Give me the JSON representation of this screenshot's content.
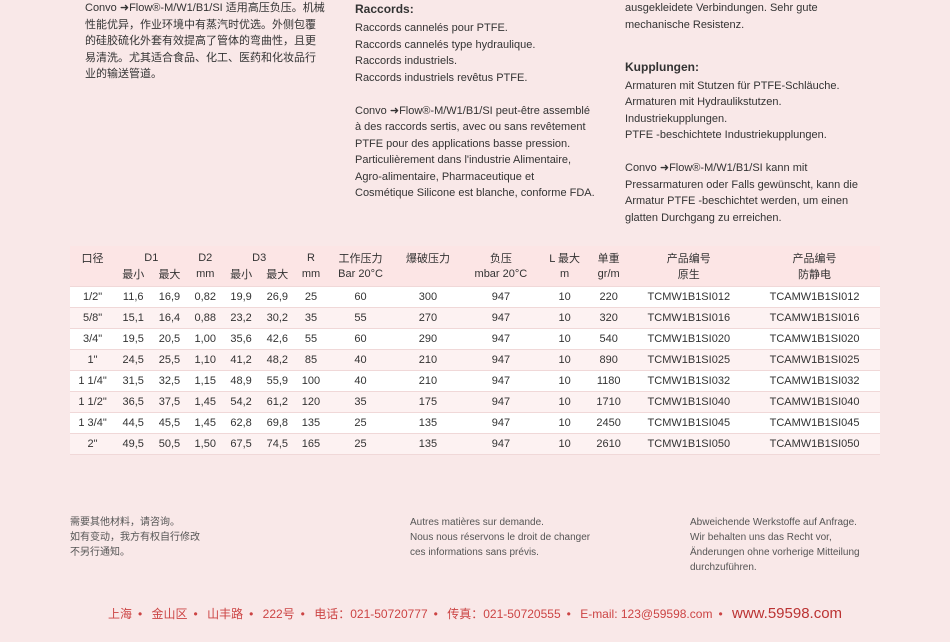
{
  "cols": [
    {
      "paras": [
        "Convo ➜Flow®-M/W1/B1/SI 适用高压负压。机械性能优异，作业环境中有蒸汽时优选。外侧包覆的硅胶硫化外套有效提高了管体的弯曲性，且更易清洗。尤其适合食品、化工、医药和化妆品行业的输送管道。"
      ]
    },
    {
      "heading": "Raccords:",
      "paras": [
        "Raccords cannelés pour PTFE.",
        "Raccords cannelés type hydraulique.",
        "Raccords industriels.",
        "Raccords industriels revêtus PTFE.",
        "",
        "Convo ➜Flow®-M/W1/B1/SI peut-être assemblé à des raccords sertis, avec ou sans revêtement PTFE pour des applications basse pression.",
        "Particulièrement dans l'industrie Alimentaire, Agro-alimentaire, Pharmaceutique et Cosmétique Silicone est blanche, conforme FDA."
      ]
    },
    {
      "paras": [
        "ausgekleidete Verbindungen. Sehr gute mechanische Resistenz.",
        ""
      ],
      "heading2": "Kupplungen:",
      "paras2": [
        "Armaturen mit Stutzen für PTFE-Schläuche.",
        "Armaturen mit Hydraulikstutzen.",
        "Industriekupplungen.",
        "PTFE -beschichtete Industriekupplungen.",
        "",
        "Convo ➜Flow®-M/W1/B1/SI kann mit Pressarmaturen oder Falls gewünscht, kann die Armatur PTFE -beschichtet werden, um einen glatten Durchgang zu erreichen."
      ]
    }
  ],
  "headers1": [
    "口径",
    "D1",
    "",
    "D2",
    "D3",
    "",
    "R",
    "工作压力",
    "爆破压力",
    "负压",
    "L 最大",
    "单重",
    "产品编号",
    "产品编号"
  ],
  "headers2": [
    "",
    "最小",
    "最大",
    "mm",
    "最小",
    "最大",
    "mm",
    "Bar 20°C",
    "",
    "mbar 20°C",
    "m",
    "gr/m",
    "原生",
    "防静电"
  ],
  "spans1": [
    1,
    2,
    0,
    1,
    2,
    0,
    1,
    1,
    1,
    1,
    1,
    1,
    1,
    1
  ],
  "rows": [
    [
      "1/2\"",
      "11,6",
      "16,9",
      "0,82",
      "19,9",
      "26,9",
      "25",
      "60",
      "300",
      "947",
      "10",
      "220",
      "TCMW1B1SI012",
      "TCAMW1B1SI012"
    ],
    [
      "5/8\"",
      "15,1",
      "16,4",
      "0,88",
      "23,2",
      "30,2",
      "35",
      "55",
      "270",
      "947",
      "10",
      "320",
      "TCMW1B1SI016",
      "TCAMW1B1SI016"
    ],
    [
      "3/4\"",
      "19,5",
      "20,5",
      "1,00",
      "35,6",
      "42,6",
      "55",
      "60",
      "290",
      "947",
      "10",
      "540",
      "TCMW1B1SI020",
      "TCAMW1B1SI020"
    ],
    [
      "1\"",
      "24,5",
      "25,5",
      "1,10",
      "41,2",
      "48,2",
      "85",
      "40",
      "210",
      "947",
      "10",
      "890",
      "TCMW1B1SI025",
      "TCAMW1B1SI025"
    ],
    [
      "1 1/4\"",
      "31,5",
      "32,5",
      "1,15",
      "48,9",
      "55,9",
      "100",
      "40",
      "210",
      "947",
      "10",
      "1180",
      "TCMW1B1SI032",
      "TCAMW1B1SI032"
    ],
    [
      "1 1/2\"",
      "36,5",
      "37,5",
      "1,45",
      "54,2",
      "61,2",
      "120",
      "35",
      "175",
      "947",
      "10",
      "1710",
      "TCMW1B1SI040",
      "TCAMW1B1SI040"
    ],
    [
      "1 3/4\"",
      "44,5",
      "45,5",
      "1,45",
      "62,8",
      "69,8",
      "135",
      "25",
      "135",
      "947",
      "10",
      "2450",
      "TCMW1B1SI045",
      "TCAMW1B1SI045"
    ],
    [
      "2\"",
      "49,5",
      "50,5",
      "1,50",
      "67,5",
      "74,5",
      "165",
      "25",
      "135",
      "947",
      "10",
      "2610",
      "TCMW1B1SI050",
      "TCAMW1B1SI050"
    ]
  ],
  "fcols": [
    [
      "需要其他材料，请咨询。",
      "如有变动，我方有权自行修改",
      "不另行通知。"
    ],
    [
      "Autres matières sur demande.",
      "Nous nous réservons le droit de changer",
      "ces informations sans prévis."
    ],
    [
      "Abweichende Werkstoffe auf Anfrage.",
      "Wir behalten uns das Recht vor,",
      "Änderungen  ohne vorherige  Mitteilung durchzuführen."
    ]
  ],
  "contact": {
    "loc": [
      "上海",
      "金山区",
      "山丰路",
      "222号"
    ],
    "tel_l": "电话：",
    "tel": "021-50720777",
    "fax_l": "传真：",
    "fax": "021-50720555",
    "em_l": "E-mail: ",
    "em": "123@59598.com",
    "web": "www.59598.com"
  }
}
